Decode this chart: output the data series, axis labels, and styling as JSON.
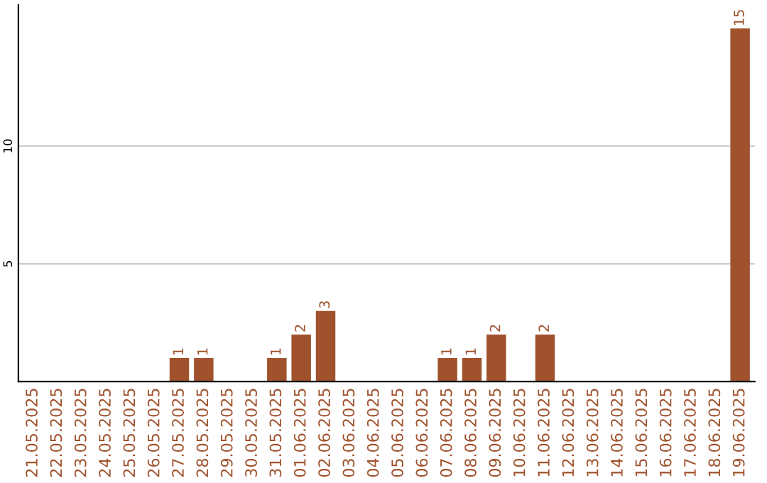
{
  "chart_data": {
    "type": "bar",
    "categories": [
      "21.05.2025",
      "22.05.2025",
      "23.05.2025",
      "24.05.2025",
      "25.05.2025",
      "26.05.2025",
      "27.05.2025",
      "28.05.2025",
      "29.05.2025",
      "30.05.2025",
      "31.05.2025",
      "01.06.2025",
      "02.06.2025",
      "03.06.2025",
      "04.06.2025",
      "05.06.2025",
      "06.06.2025",
      "07.06.2025",
      "08.06.2025",
      "09.06.2025",
      "10.06.2025",
      "11.06.2025",
      "12.06.2025",
      "13.06.2025",
      "14.06.2025",
      "15.06.2025",
      "16.06.2025",
      "17.06.2025",
      "18.06.2025",
      "19.06.2025"
    ],
    "values": [
      0,
      0,
      0,
      0,
      0,
      0,
      1,
      1,
      0,
      0,
      1,
      2,
      3,
      0,
      0,
      0,
      0,
      1,
      1,
      2,
      0,
      2,
      0,
      0,
      0,
      0,
      0,
      0,
      0,
      15
    ],
    "value_labels": [
      null,
      null,
      null,
      null,
      null,
      null,
      "1",
      "1",
      null,
      null,
      "1",
      "2",
      "3",
      null,
      null,
      null,
      null,
      "1",
      "1",
      "2",
      null,
      "2",
      null,
      null,
      null,
      null,
      null,
      null,
      null,
      "15"
    ],
    "color": "#a0522d",
    "ylim": [
      0,
      16
    ],
    "yticks": [
      5,
      10
    ],
    "grid": "y"
  }
}
